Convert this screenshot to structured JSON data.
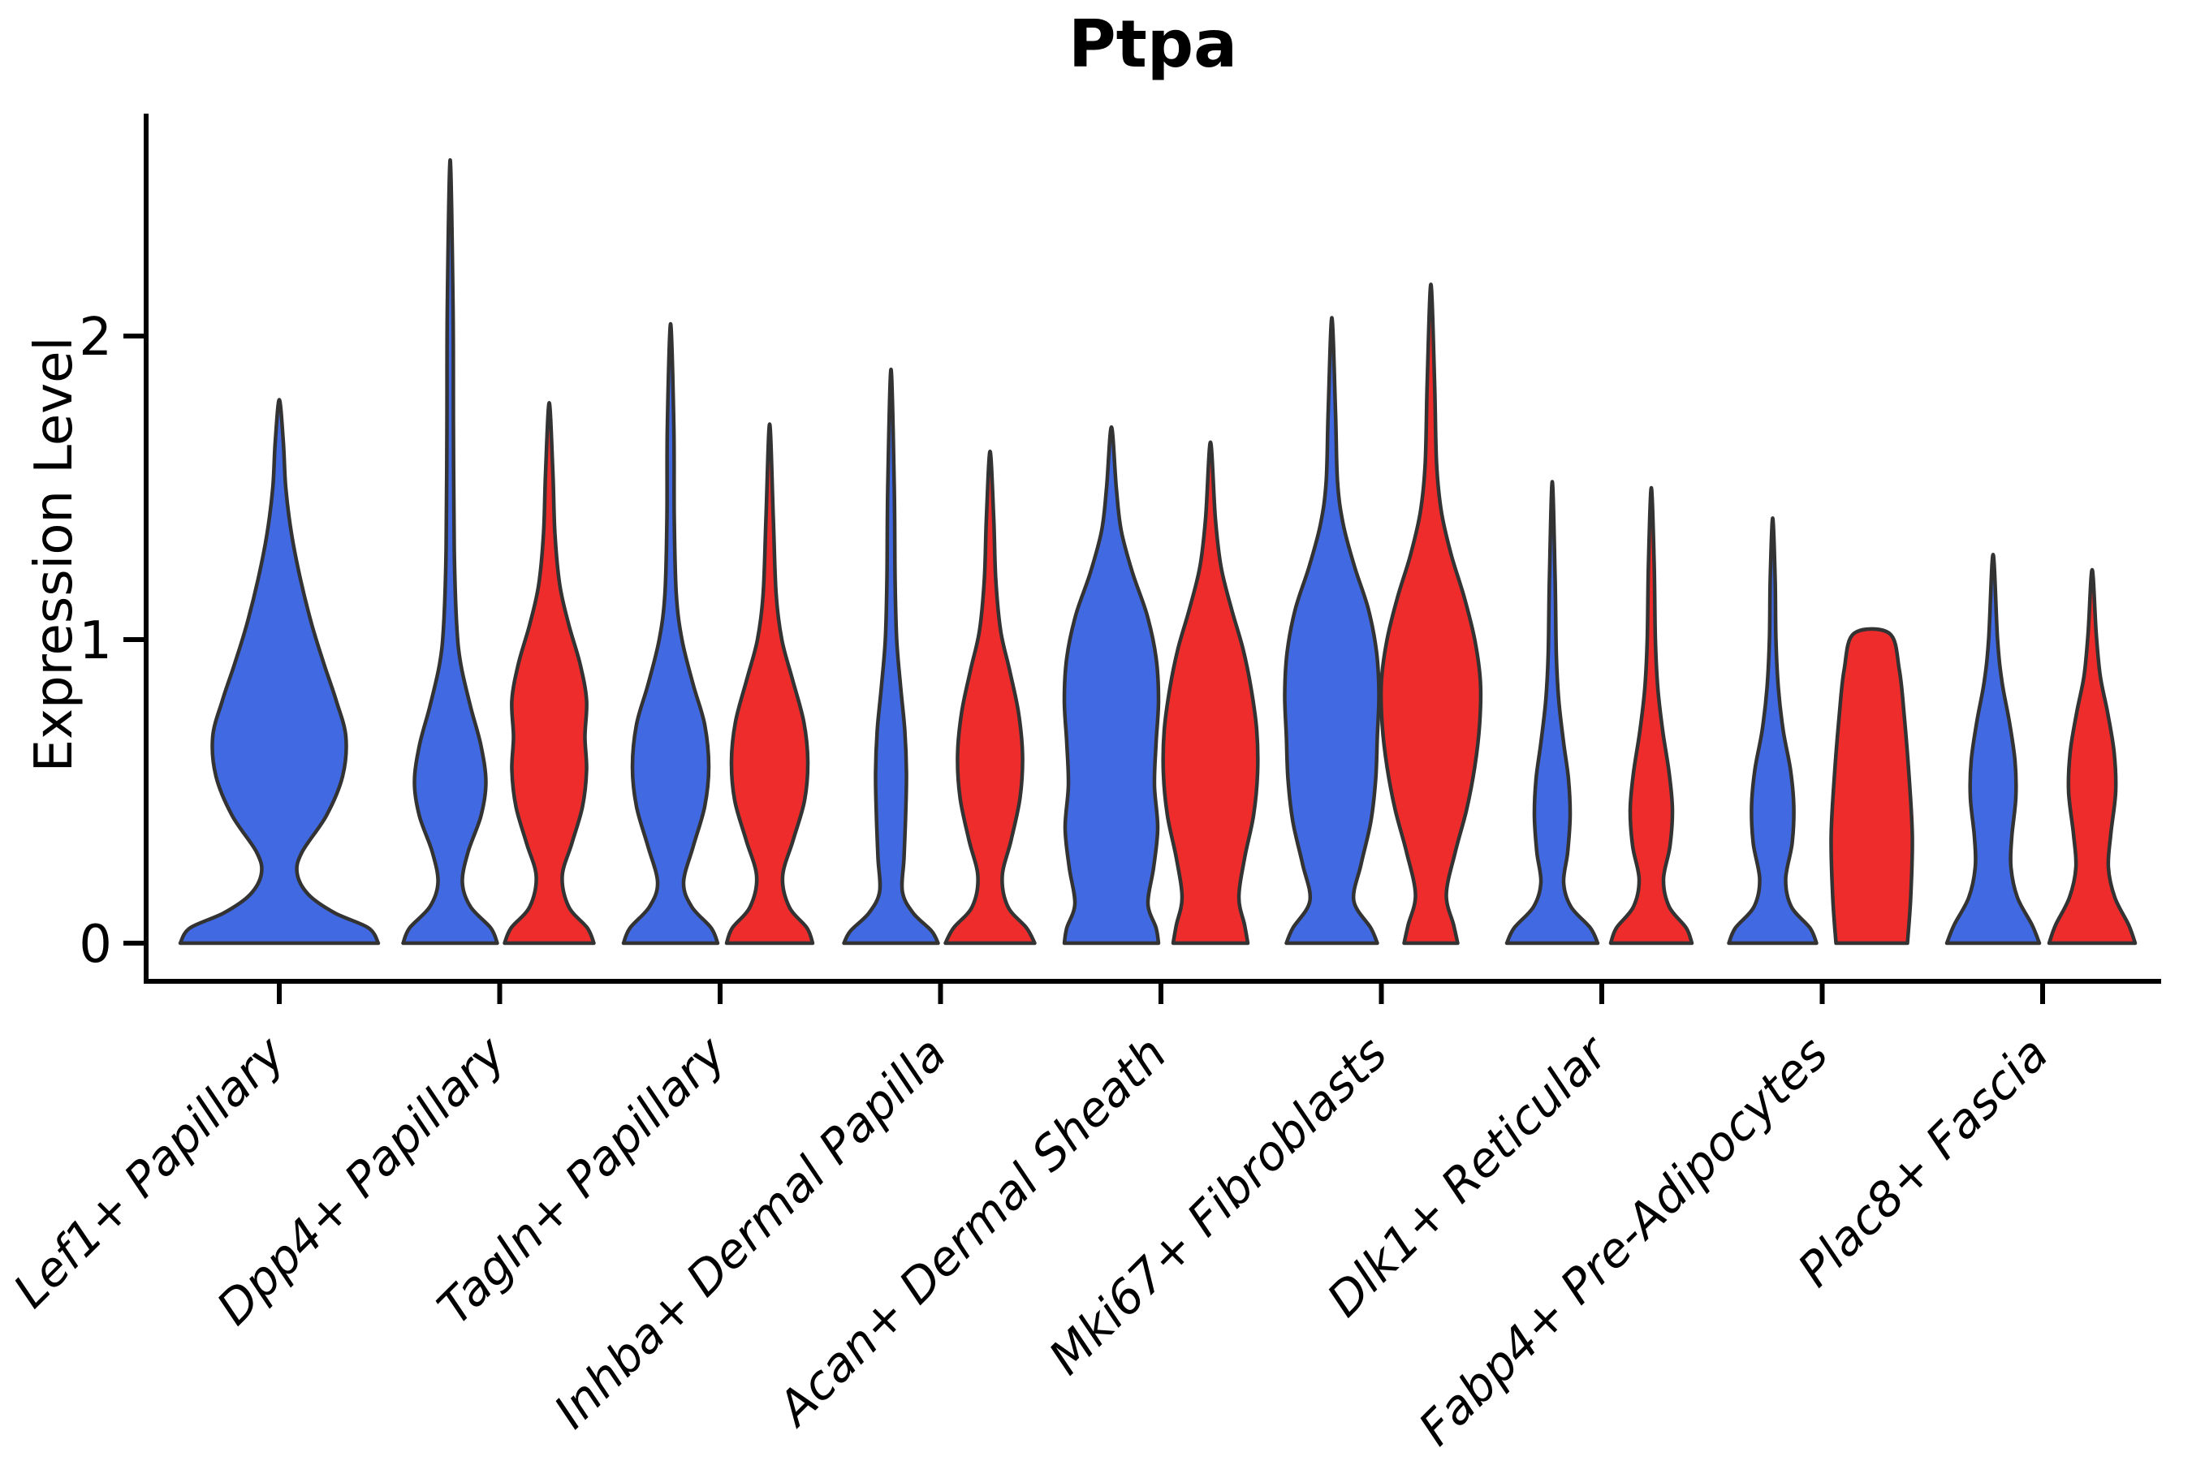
{
  "title": "Ptpa",
  "axes": {
    "y_label": "Expression Level",
    "y_tick_labels": [
      "0",
      "1",
      "2"
    ]
  },
  "colors": {
    "group_blue": "#4169E1",
    "group_red": "#EE2C2C",
    "outline": "#333333",
    "axis": "#000000",
    "background": "#FFFFFF"
  },
  "chart_data": {
    "type": "violin",
    "title": "Ptpa",
    "xlabel": "",
    "ylabel": "Expression Level",
    "ylim": [
      0,
      2.75
    ],
    "yticks": [
      0,
      1,
      2
    ],
    "grid": false,
    "legend": "none",
    "groups": [
      {
        "name": "blue",
        "color": "#4169E1"
      },
      {
        "name": "red",
        "color": "#EE2C2C"
      }
    ],
    "categories": [
      {
        "label": "Lef1+ Papillary",
        "violins": [
          {
            "group": "blue",
            "single": true,
            "max_value": 1.79,
            "profile": [
              [
                0,
                122
              ],
              [
                0.05,
                110
              ],
              [
                0.1,
                68
              ],
              [
                0.16,
                36
              ],
              [
                0.23,
                22
              ],
              [
                0.3,
                28
              ],
              [
                0.42,
                58
              ],
              [
                0.55,
                78
              ],
              [
                0.68,
                82
              ],
              [
                0.8,
                70
              ],
              [
                0.92,
                55
              ],
              [
                1.05,
                40
              ],
              [
                1.2,
                26
              ],
              [
                1.35,
                15
              ],
              [
                1.5,
                8
              ],
              [
                1.65,
                5
              ],
              [
                1.79,
                0
              ]
            ]
          }
        ]
      },
      {
        "label": "Dpp4+ Papillary",
        "violins": [
          {
            "group": "blue",
            "max_value": 2.58,
            "profile": [
              [
                0,
                58
              ],
              [
                0.05,
                50
              ],
              [
                0.12,
                25
              ],
              [
                0.2,
                15
              ],
              [
                0.3,
                22
              ],
              [
                0.42,
                38
              ],
              [
                0.53,
                44
              ],
              [
                0.65,
                38
              ],
              [
                0.78,
                25
              ],
              [
                0.92,
                13
              ],
              [
                1.05,
                8
              ],
              [
                1.3,
                5
              ],
              [
                1.7,
                4
              ],
              [
                2.1,
                3.5
              ],
              [
                2.58,
                0
              ]
            ]
          },
          {
            "group": "red",
            "max_value": 1.78,
            "profile": [
              [
                0,
                55
              ],
              [
                0.05,
                47
              ],
              [
                0.12,
                24
              ],
              [
                0.22,
                16
              ],
              [
                0.33,
                28
              ],
              [
                0.45,
                41
              ],
              [
                0.57,
                46
              ],
              [
                0.68,
                44
              ],
              [
                0.8,
                46
              ],
              [
                0.92,
                38
              ],
              [
                1.05,
                24
              ],
              [
                1.18,
                13
              ],
              [
                1.35,
                7
              ],
              [
                1.55,
                4.5
              ],
              [
                1.78,
                0
              ]
            ]
          }
        ]
      },
      {
        "label": "Tagln+ Papillary",
        "violins": [
          {
            "group": "blue",
            "max_value": 2.04,
            "profile": [
              [
                0,
                58
              ],
              [
                0.05,
                50
              ],
              [
                0.12,
                26
              ],
              [
                0.2,
                16
              ],
              [
                0.32,
                28
              ],
              [
                0.45,
                42
              ],
              [
                0.58,
                47
              ],
              [
                0.72,
                42
              ],
              [
                0.85,
                28
              ],
              [
                1.0,
                14
              ],
              [
                1.15,
                7
              ],
              [
                1.4,
                4.5
              ],
              [
                1.7,
                4
              ],
              [
                2.04,
                0
              ]
            ]
          },
          {
            "group": "red",
            "max_value": 1.71,
            "profile": [
              [
                0,
                53
              ],
              [
                0.05,
                46
              ],
              [
                0.12,
                24
              ],
              [
                0.22,
                16
              ],
              [
                0.34,
                29
              ],
              [
                0.47,
                43
              ],
              [
                0.6,
                47
              ],
              [
                0.73,
                42
              ],
              [
                0.87,
                28
              ],
              [
                1.0,
                15
              ],
              [
                1.15,
                8
              ],
              [
                1.4,
                4.5
              ],
              [
                1.71,
                0
              ]
            ]
          }
        ]
      },
      {
        "label": "Inhba+ Dermal Papilla",
        "violins": [
          {
            "group": "blue",
            "max_value": 1.89,
            "profile": [
              [
                0,
                58
              ],
              [
                0.04,
                50
              ],
              [
                0.1,
                27
              ],
              [
                0.17,
                14
              ],
              [
                0.28,
                16
              ],
              [
                0.42,
                18
              ],
              [
                0.56,
                19
              ],
              [
                0.7,
                17
              ],
              [
                0.84,
                12
              ],
              [
                1.0,
                7
              ],
              [
                1.2,
                5
              ],
              [
                1.5,
                4
              ],
              [
                1.89,
                0
              ]
            ]
          },
          {
            "group": "red",
            "max_value": 1.62,
            "profile": [
              [
                0,
                55
              ],
              [
                0.05,
                45
              ],
              [
                0.12,
                22
              ],
              [
                0.22,
                15
              ],
              [
                0.34,
                26
              ],
              [
                0.48,
                37
              ],
              [
                0.62,
                40
              ],
              [
                0.76,
                35
              ],
              [
                0.9,
                24
              ],
              [
                1.03,
                13
              ],
              [
                1.2,
                7
              ],
              [
                1.4,
                4.5
              ],
              [
                1.62,
                0
              ]
            ]
          }
        ]
      },
      {
        "label": "Acan+ Dermal Sheath",
        "violins": [
          {
            "group": "blue",
            "max_value": 1.7,
            "profile": [
              [
                0,
                58
              ],
              [
                0.05,
                55
              ],
              [
                0.13,
                45
              ],
              [
                0.25,
                52
              ],
              [
                0.38,
                57
              ],
              [
                0.52,
                53
              ],
              [
                0.66,
                55
              ],
              [
                0.8,
                58
              ],
              [
                0.94,
                55
              ],
              [
                1.08,
                44
              ],
              [
                1.22,
                26
              ],
              [
                1.36,
                12
              ],
              [
                1.5,
                6
              ],
              [
                1.7,
                0
              ]
            ]
          },
          {
            "group": "red",
            "max_value": 1.65,
            "profile": [
              [
                0,
                46
              ],
              [
                0.06,
                42
              ],
              [
                0.15,
                35
              ],
              [
                0.28,
                42
              ],
              [
                0.42,
                53
              ],
              [
                0.56,
                58
              ],
              [
                0.7,
                57
              ],
              [
                0.84,
                50
              ],
              [
                0.97,
                40
              ],
              [
                1.1,
                26
              ],
              [
                1.24,
                13
              ],
              [
                1.4,
                6
              ],
              [
                1.65,
                0
              ]
            ]
          }
        ]
      },
      {
        "label": "Mki67+ Fibroblasts",
        "violins": [
          {
            "group": "blue",
            "max_value": 2.06,
            "profile": [
              [
                0,
                56
              ],
              [
                0.05,
                48
              ],
              [
                0.14,
                27
              ],
              [
                0.26,
                36
              ],
              [
                0.4,
                48
              ],
              [
                0.54,
                54
              ],
              [
                0.68,
                56
              ],
              [
                0.82,
                58
              ],
              [
                0.96,
                55
              ],
              [
                1.1,
                45
              ],
              [
                1.24,
                28
              ],
              [
                1.38,
                14
              ],
              [
                1.52,
                7
              ],
              [
                1.75,
                4.5
              ],
              [
                2.06,
                0
              ]
            ]
          },
          {
            "group": "red",
            "max_value": 2.17,
            "profile": [
              [
                0,
                33
              ],
              [
                0.06,
                28
              ],
              [
                0.16,
                19
              ],
              [
                0.3,
                30
              ],
              [
                0.44,
                44
              ],
              [
                0.58,
                54
              ],
              [
                0.72,
                60
              ],
              [
                0.86,
                61
              ],
              [
                1.0,
                54
              ],
              [
                1.14,
                41
              ],
              [
                1.28,
                25
              ],
              [
                1.42,
                13
              ],
              [
                1.58,
                7
              ],
              [
                1.85,
                4.5
              ],
              [
                2.17,
                0
              ]
            ]
          }
        ]
      },
      {
        "label": "Dlk1+ Reticular",
        "violins": [
          {
            "group": "blue",
            "max_value": 1.52,
            "profile": [
              [
                0,
                56
              ],
              [
                0.05,
                47
              ],
              [
                0.12,
                23
              ],
              [
                0.2,
                14
              ],
              [
                0.3,
                19
              ],
              [
                0.42,
                22
              ],
              [
                0.54,
                20
              ],
              [
                0.66,
                14
              ],
              [
                0.8,
                8
              ],
              [
                0.95,
                5
              ],
              [
                1.2,
                3.5
              ],
              [
                1.52,
                0
              ]
            ]
          },
          {
            "group": "red",
            "max_value": 1.5,
            "profile": [
              [
                0,
                50
              ],
              [
                0.05,
                43
              ],
              [
                0.12,
                22
              ],
              [
                0.21,
                15
              ],
              [
                0.32,
                23
              ],
              [
                0.44,
                26
              ],
              [
                0.56,
                22
              ],
              [
                0.7,
                14
              ],
              [
                0.84,
                8
              ],
              [
                1.0,
                5
              ],
              [
                1.25,
                3.5
              ],
              [
                1.5,
                0
              ]
            ]
          }
        ]
      },
      {
        "label": "Fabp4+ Pre-Adipocytes",
        "violins": [
          {
            "group": "blue",
            "max_value": 1.4,
            "profile": [
              [
                0,
                54
              ],
              [
                0.05,
                46
              ],
              [
                0.12,
                23
              ],
              [
                0.21,
                16
              ],
              [
                0.33,
                24
              ],
              [
                0.45,
                26
              ],
              [
                0.57,
                22
              ],
              [
                0.7,
                13
              ],
              [
                0.84,
                7
              ],
              [
                1.0,
                4
              ],
              [
                1.2,
                3
              ],
              [
                1.4,
                0
              ]
            ]
          },
          {
            "group": "red",
            "max_value": 1.02,
            "flat_top": true,
            "profile": [
              [
                0,
                44
              ],
              [
                0.15,
                48
              ],
              [
                0.35,
                50
              ],
              [
                0.55,
                46
              ],
              [
                0.75,
                40
              ],
              [
                0.9,
                34
              ],
              [
                1.02,
                22
              ]
            ]
          }
        ]
      },
      {
        "label": "Plac8+ Fascia",
        "violins": [
          {
            "group": "blue",
            "max_value": 1.28,
            "profile": [
              [
                0,
                57
              ],
              [
                0.06,
                48
              ],
              [
                0.15,
                30
              ],
              [
                0.25,
                22
              ],
              [
                0.35,
                23
              ],
              [
                0.48,
                28
              ],
              [
                0.6,
                27
              ],
              [
                0.73,
                20
              ],
              [
                0.86,
                11
              ],
              [
                1.0,
                5.5
              ],
              [
                1.28,
                0
              ]
            ]
          },
          {
            "group": "red",
            "max_value": 1.23,
            "profile": [
              [
                0,
                53
              ],
              [
                0.06,
                45
              ],
              [
                0.15,
                28
              ],
              [
                0.25,
                20
              ],
              [
                0.36,
                23
              ],
              [
                0.5,
                29
              ],
              [
                0.63,
                27
              ],
              [
                0.76,
                19
              ],
              [
                0.88,
                10
              ],
              [
                1.02,
                5
              ],
              [
                1.23,
                0
              ]
            ]
          }
        ]
      }
    ]
  }
}
